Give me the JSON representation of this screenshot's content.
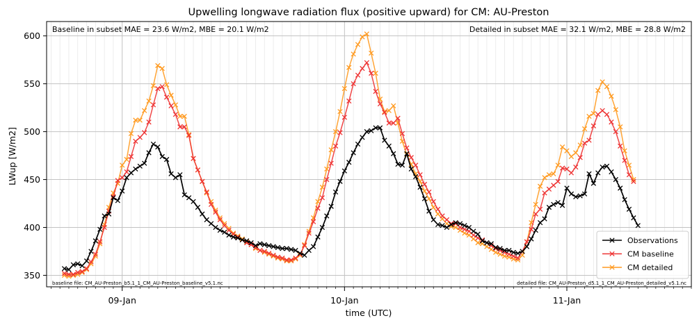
{
  "chart_data": {
    "type": "line",
    "title": "Upwelling longwave radiation flux (positive upward) for CM: AU-Preston",
    "xlabel": "time (UTC)",
    "ylabel": "LWup [W/m2]",
    "ylim": [
      338,
      615
    ],
    "xlim": [
      -34,
      256
    ],
    "x_tick_labels": [
      "09-Jan",
      "10-Jan",
      "11-Jan"
    ],
    "x_tick_positions_hours": [
      0,
      100,
      200
    ],
    "y_ticks": [
      350,
      400,
      450,
      500,
      550,
      600
    ],
    "grid": true,
    "legend_position": "lower-right",
    "annotations": {
      "baseline_stats": "Baseline in subset MAE = 23.6 W/m2, MBE = 20.1 W/m2",
      "detailed_stats": "Detailed in subset MAE = 32.1 W/m2, MBE = 28.8 W/m2",
      "baseline_file": "baseline file: CM_AU-Preston_b5.1_1_CM_AU-Preston_baseline_v5.1.nc",
      "detailed_file": "detailed file: CM_AU-Preston_d5.1_1_CM_AU-Preston_detailed_v5.1.nc"
    },
    "x_start": -26,
    "x_step": 2,
    "series": [
      {
        "name": "Observations",
        "color": "#000000",
        "values": [
          357,
          356,
          361,
          362,
          360,
          365,
          375,
          386,
          398,
          412,
          414,
          431,
          428,
          438,
          452,
          457,
          461,
          464,
          467,
          478,
          487,
          484,
          474,
          471,
          456,
          452,
          455,
          434,
          431,
          427,
          421,
          414,
          408,
          404,
          400,
          397,
          395,
          392,
          390,
          389,
          387,
          386,
          384,
          381,
          383,
          382,
          381,
          380,
          379,
          378,
          378,
          377,
          376,
          373,
          371,
          376,
          380,
          390,
          400,
          412,
          422,
          437,
          448,
          459,
          468,
          478,
          487,
          494,
          500,
          501,
          504,
          504,
          491,
          485,
          477,
          466,
          465,
          477,
          461,
          453,
          442,
          430,
          417,
          408,
          403,
          402,
          400,
          403,
          405,
          404,
          402,
          400,
          396,
          393,
          386,
          384,
          383,
          379,
          378,
          376,
          376,
          374,
          373,
          375,
          380,
          388,
          397,
          405,
          409,
          421,
          424,
          426,
          423,
          441,
          435,
          432,
          433,
          435,
          456,
          446,
          457,
          463,
          464,
          458,
          450,
          441,
          429,
          419,
          410,
          402
        ]
      },
      {
        "name": "CM baseline",
        "color": "#ee3333",
        "values": [
          352,
          351,
          351,
          353,
          354,
          357,
          364,
          372,
          385,
          400,
          417,
          432,
          449,
          452,
          458,
          474,
          490,
          494,
          499,
          510,
          528,
          545,
          547,
          536,
          527,
          518,
          505,
          505,
          496,
          472,
          460,
          448,
          437,
          424,
          416,
          408,
          402,
          397,
          393,
          390,
          387,
          384,
          382,
          379,
          376,
          375,
          373,
          371,
          369,
          368,
          366,
          366,
          368,
          372,
          381,
          394,
          406,
          420,
          431,
          450,
          467,
          485,
          499,
          515,
          532,
          550,
          559,
          566,
          572,
          561,
          542,
          529,
          520,
          509,
          509,
          514,
          498,
          483,
          473,
          465,
          455,
          445,
          437,
          427,
          419,
          412,
          408,
          404,
          404,
          400,
          398,
          396,
          392,
          389,
          387,
          384,
          381,
          378,
          376,
          374,
          372,
          370,
          368,
          375,
          385,
          398,
          414,
          419,
          436,
          440,
          444,
          448,
          462,
          461,
          457,
          463,
          473,
          488,
          491,
          506,
          518,
          522,
          518,
          510,
          500,
          485,
          470,
          455,
          448
        ]
      },
      {
        "name": "CM detailed",
        "color": "#ff9a20",
        "values": [
          350,
          349,
          350,
          351,
          353,
          356,
          362,
          370,
          383,
          403,
          421,
          436,
          446,
          465,
          471,
          498,
          512,
          512,
          522,
          532,
          548,
          569,
          566,
          549,
          538,
          528,
          516,
          516,
          497,
          472,
          460,
          448,
          436,
          427,
          418,
          410,
          404,
          399,
          394,
          391,
          388,
          385,
          382,
          378,
          376,
          374,
          372,
          370,
          368,
          367,
          365,
          365,
          367,
          371,
          382,
          396,
          410,
          427,
          442,
          461,
          481,
          500,
          521,
          545,
          567,
          581,
          591,
          599,
          602,
          582,
          561,
          534,
          521,
          522,
          527,
          509,
          490,
          476,
          466,
          456,
          448,
          438,
          430,
          421,
          414,
          409,
          404,
          401,
          400,
          397,
          394,
          392,
          388,
          384,
          383,
          380,
          377,
          374,
          372,
          370,
          369,
          367,
          366,
          371,
          385,
          405,
          424,
          443,
          452,
          455,
          456,
          465,
          484,
          480,
          474,
          478,
          486,
          503,
          516,
          519,
          543,
          552,
          547,
          537,
          523,
          505,
          480,
          465,
          450
        ]
      }
    ]
  }
}
